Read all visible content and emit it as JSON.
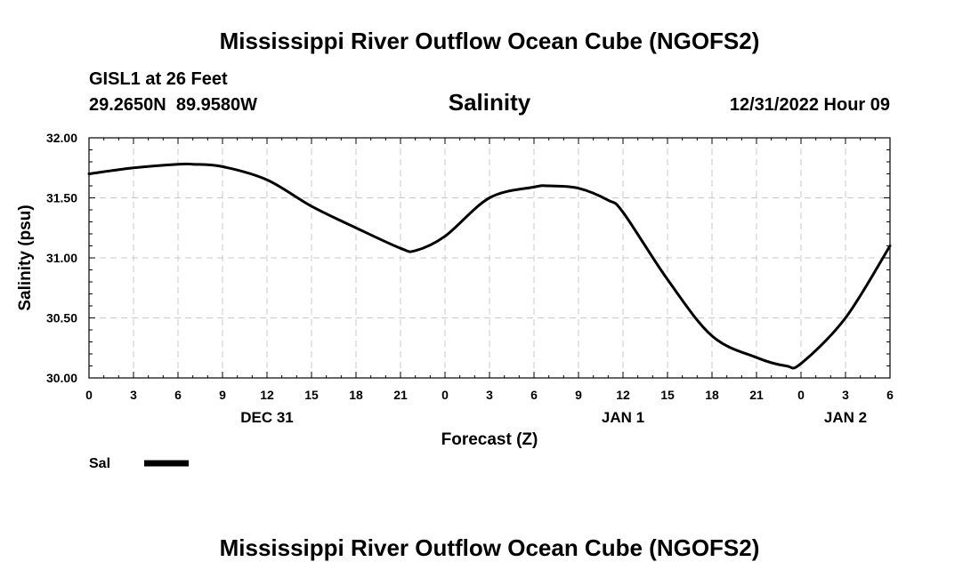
{
  "page": {
    "header_title": "Mississippi River Outflow Ocean Cube (NGOFS2)",
    "footer_title": "Mississippi River Outflow Ocean Cube (NGOFS2)",
    "station_name": "GISL1 at 26 Feet",
    "station_coords": "29.2650N  89.9580W",
    "timestamp": "12/31/2022 Hour 09"
  },
  "colors": {
    "line": "#000000",
    "grid": "#c8c8c8",
    "frame": "#000000",
    "background": "#ffffff"
  },
  "chart_data": {
    "type": "line",
    "title": "Salinity",
    "xlabel": "Forecast (Z)",
    "ylabel": "Salinity (psu)",
    "x_units": "hours since 2022-12-31 00Z",
    "xlim": [
      0,
      54
    ],
    "ylim": [
      30.0,
      32.0
    ],
    "grid": true,
    "x_ticks": [
      0,
      3,
      6,
      9,
      12,
      15,
      18,
      21,
      24,
      27,
      30,
      33,
      36,
      39,
      42,
      45,
      48,
      51,
      54
    ],
    "x_tick_labels": [
      "0",
      "3",
      "6",
      "9",
      "12",
      "15",
      "18",
      "21",
      "0",
      "3",
      "6",
      "9",
      "12",
      "15",
      "18",
      "21",
      "0",
      "3",
      "6"
    ],
    "y_ticks": [
      30.0,
      30.5,
      31.0,
      31.5,
      32.0
    ],
    "y_tick_labels": [
      "30.00",
      "30.50",
      "31.00",
      "31.50",
      "32.00"
    ],
    "date_labels": [
      {
        "x": 12,
        "label": "DEC 31"
      },
      {
        "x": 36,
        "label": "JAN 1"
      },
      {
        "x": 51,
        "label": "JAN 2"
      }
    ],
    "legend": {
      "position": "bottom-left",
      "entries": [
        "Sal"
      ]
    },
    "series": [
      {
        "name": "Sal",
        "x": [
          0,
          3,
          6,
          7,
          9,
          12,
          15,
          18,
          21,
          22,
          24,
          27,
          30,
          31,
          33,
          35,
          36,
          39,
          42,
          45,
          47,
          48,
          51,
          54
        ],
        "y": [
          31.7,
          31.75,
          31.78,
          31.78,
          31.76,
          31.65,
          31.43,
          31.25,
          31.08,
          31.06,
          31.18,
          31.5,
          31.59,
          31.6,
          31.58,
          31.48,
          31.38,
          30.82,
          30.35,
          30.17,
          30.1,
          30.12,
          30.5,
          31.1
        ]
      }
    ]
  }
}
